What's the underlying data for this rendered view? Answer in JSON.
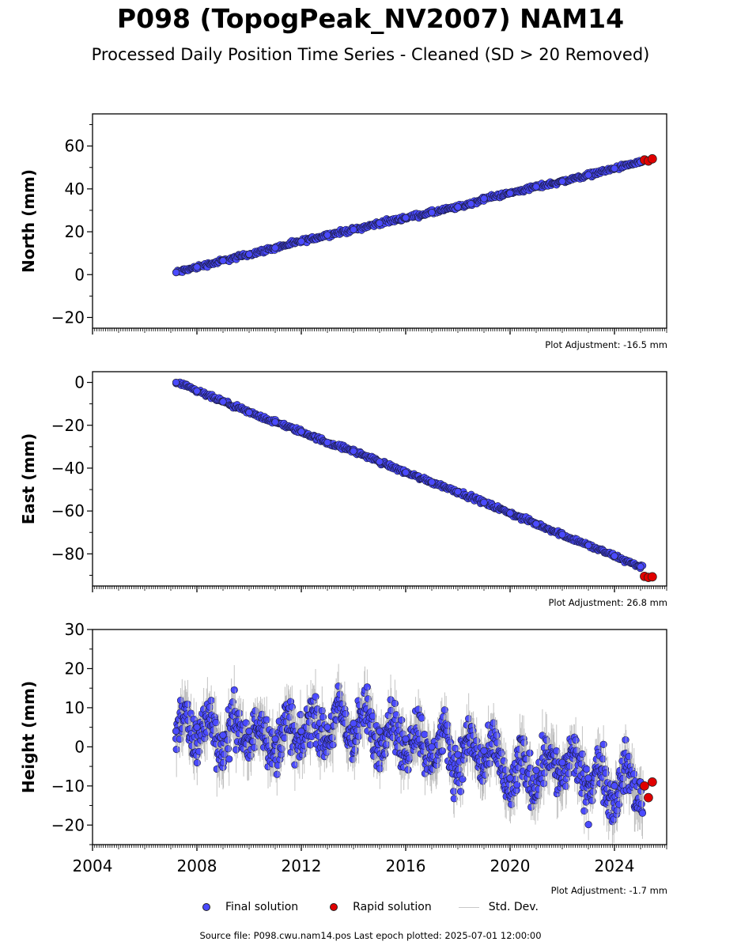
{
  "title": "P098 (TopogPeak_NV2007) NAM14",
  "subtitle": "Processed Daily Position Time Series - Cleaned (SD > 20 Removed)",
  "source_text": "Source file: P098.cwu.nam14.pos  Last epoch plotted: 2025-07-01 12:00:00",
  "legend": {
    "final": "Final solution",
    "rapid": "Rapid solution",
    "std": "Std. Dev."
  },
  "colors": {
    "final": "#4a4aff",
    "rapid": "#e00000",
    "std": "#b4b4b4"
  },
  "chart_data": [
    {
      "type": "scatter",
      "ylabel": "North (mm)",
      "adjustment": "Plot Adjustment: -16.5 mm",
      "xlim": [
        2004,
        2026
      ],
      "ylim": [
        -25,
        75
      ],
      "yticks": [
        -20,
        0,
        20,
        40,
        60
      ],
      "ytick_labels": [
        "−20",
        "0",
        "20",
        "40",
        "60"
      ],
      "series": [
        {
          "name": "Final solution",
          "x": [
            2007.2,
            2008.0,
            2009.0,
            2010.0,
            2011.0,
            2012.0,
            2013.0,
            2014.0,
            2015.0,
            2016.0,
            2017.0,
            2018.0,
            2018.5,
            2019.0,
            2020.0,
            2021.0,
            2022.0,
            2023.0,
            2024.0,
            2025.0
          ],
          "y": [
            1,
            3.5,
            6.5,
            9.5,
            12.5,
            15.5,
            18.5,
            21,
            24,
            26.5,
            29,
            31.5,
            33,
            35.5,
            38,
            41,
            43.5,
            46.5,
            49.5,
            52.5
          ]
        },
        {
          "name": "Rapid solution",
          "x": [
            2025.15,
            2025.3,
            2025.45
          ],
          "y": [
            53.5,
            53,
            54
          ]
        }
      ]
    },
    {
      "type": "scatter",
      "ylabel": "East (mm)",
      "adjustment": "Plot Adjustment: 26.8 mm",
      "xlim": [
        2004,
        2026
      ],
      "ylim": [
        -95,
        5
      ],
      "yticks": [
        -80,
        -60,
        -40,
        -20,
        0
      ],
      "ytick_labels": [
        "−80",
        "−60",
        "−40",
        "−20",
        "0"
      ],
      "series": [
        {
          "name": "Final solution",
          "x": [
            2007.2,
            2008.0,
            2009.0,
            2010.0,
            2011.0,
            2012.0,
            2013.0,
            2014.0,
            2015.0,
            2016.0,
            2017.0,
            2018.0,
            2019.0,
            2020.0,
            2021.0,
            2022.0,
            2023.0,
            2024.0,
            2025.0
          ],
          "y": [
            0,
            -4,
            -9,
            -14,
            -18.5,
            -23,
            -28,
            -32,
            -37,
            -42,
            -46.5,
            -51,
            -56,
            -61,
            -66,
            -71,
            -76,
            -81,
            -86
          ]
        },
        {
          "name": "Rapid solution",
          "x": [
            2025.15,
            2025.3,
            2025.45
          ],
          "y": [
            -90.5,
            -91,
            -90.7
          ]
        }
      ]
    },
    {
      "type": "scatter",
      "ylabel": "Height (mm)",
      "adjustment": "Plot Adjustment: -1.7 mm",
      "xlim": [
        2004,
        2026
      ],
      "ylim": [
        -25,
        30
      ],
      "yticks": [
        -20,
        -10,
        0,
        10,
        20,
        30
      ],
      "ytick_labels": [
        "−20",
        "−10",
        "0",
        "10",
        "20",
        "30"
      ],
      "xticks": [
        2004,
        2008,
        2012,
        2016,
        2020,
        2024
      ],
      "xtick_labels": [
        "2004",
        "2008",
        "2012",
        "2016",
        "2020",
        "2024"
      ],
      "series": [
        {
          "name": "Final solution",
          "x": [
            2007.2,
            2008.0,
            2009.0,
            2010.0,
            2011.0,
            2012.0,
            2013.0,
            2014.0,
            2015.0,
            2016.0,
            2017.0,
            2018.0,
            2019.0,
            2020.0,
            2021.0,
            2022.0,
            2023.0,
            2024.0,
            2025.0
          ],
          "y": [
            4,
            5,
            3,
            4,
            2,
            4,
            5,
            6,
            4,
            2,
            0,
            -2,
            -1,
            -8,
            -6,
            -4,
            -8,
            -10,
            -9
          ]
        },
        {
          "name": "Rapid solution",
          "x": [
            2025.15,
            2025.3,
            2025.45
          ],
          "y": [
            -10,
            -13,
            -9
          ]
        }
      ]
    }
  ]
}
